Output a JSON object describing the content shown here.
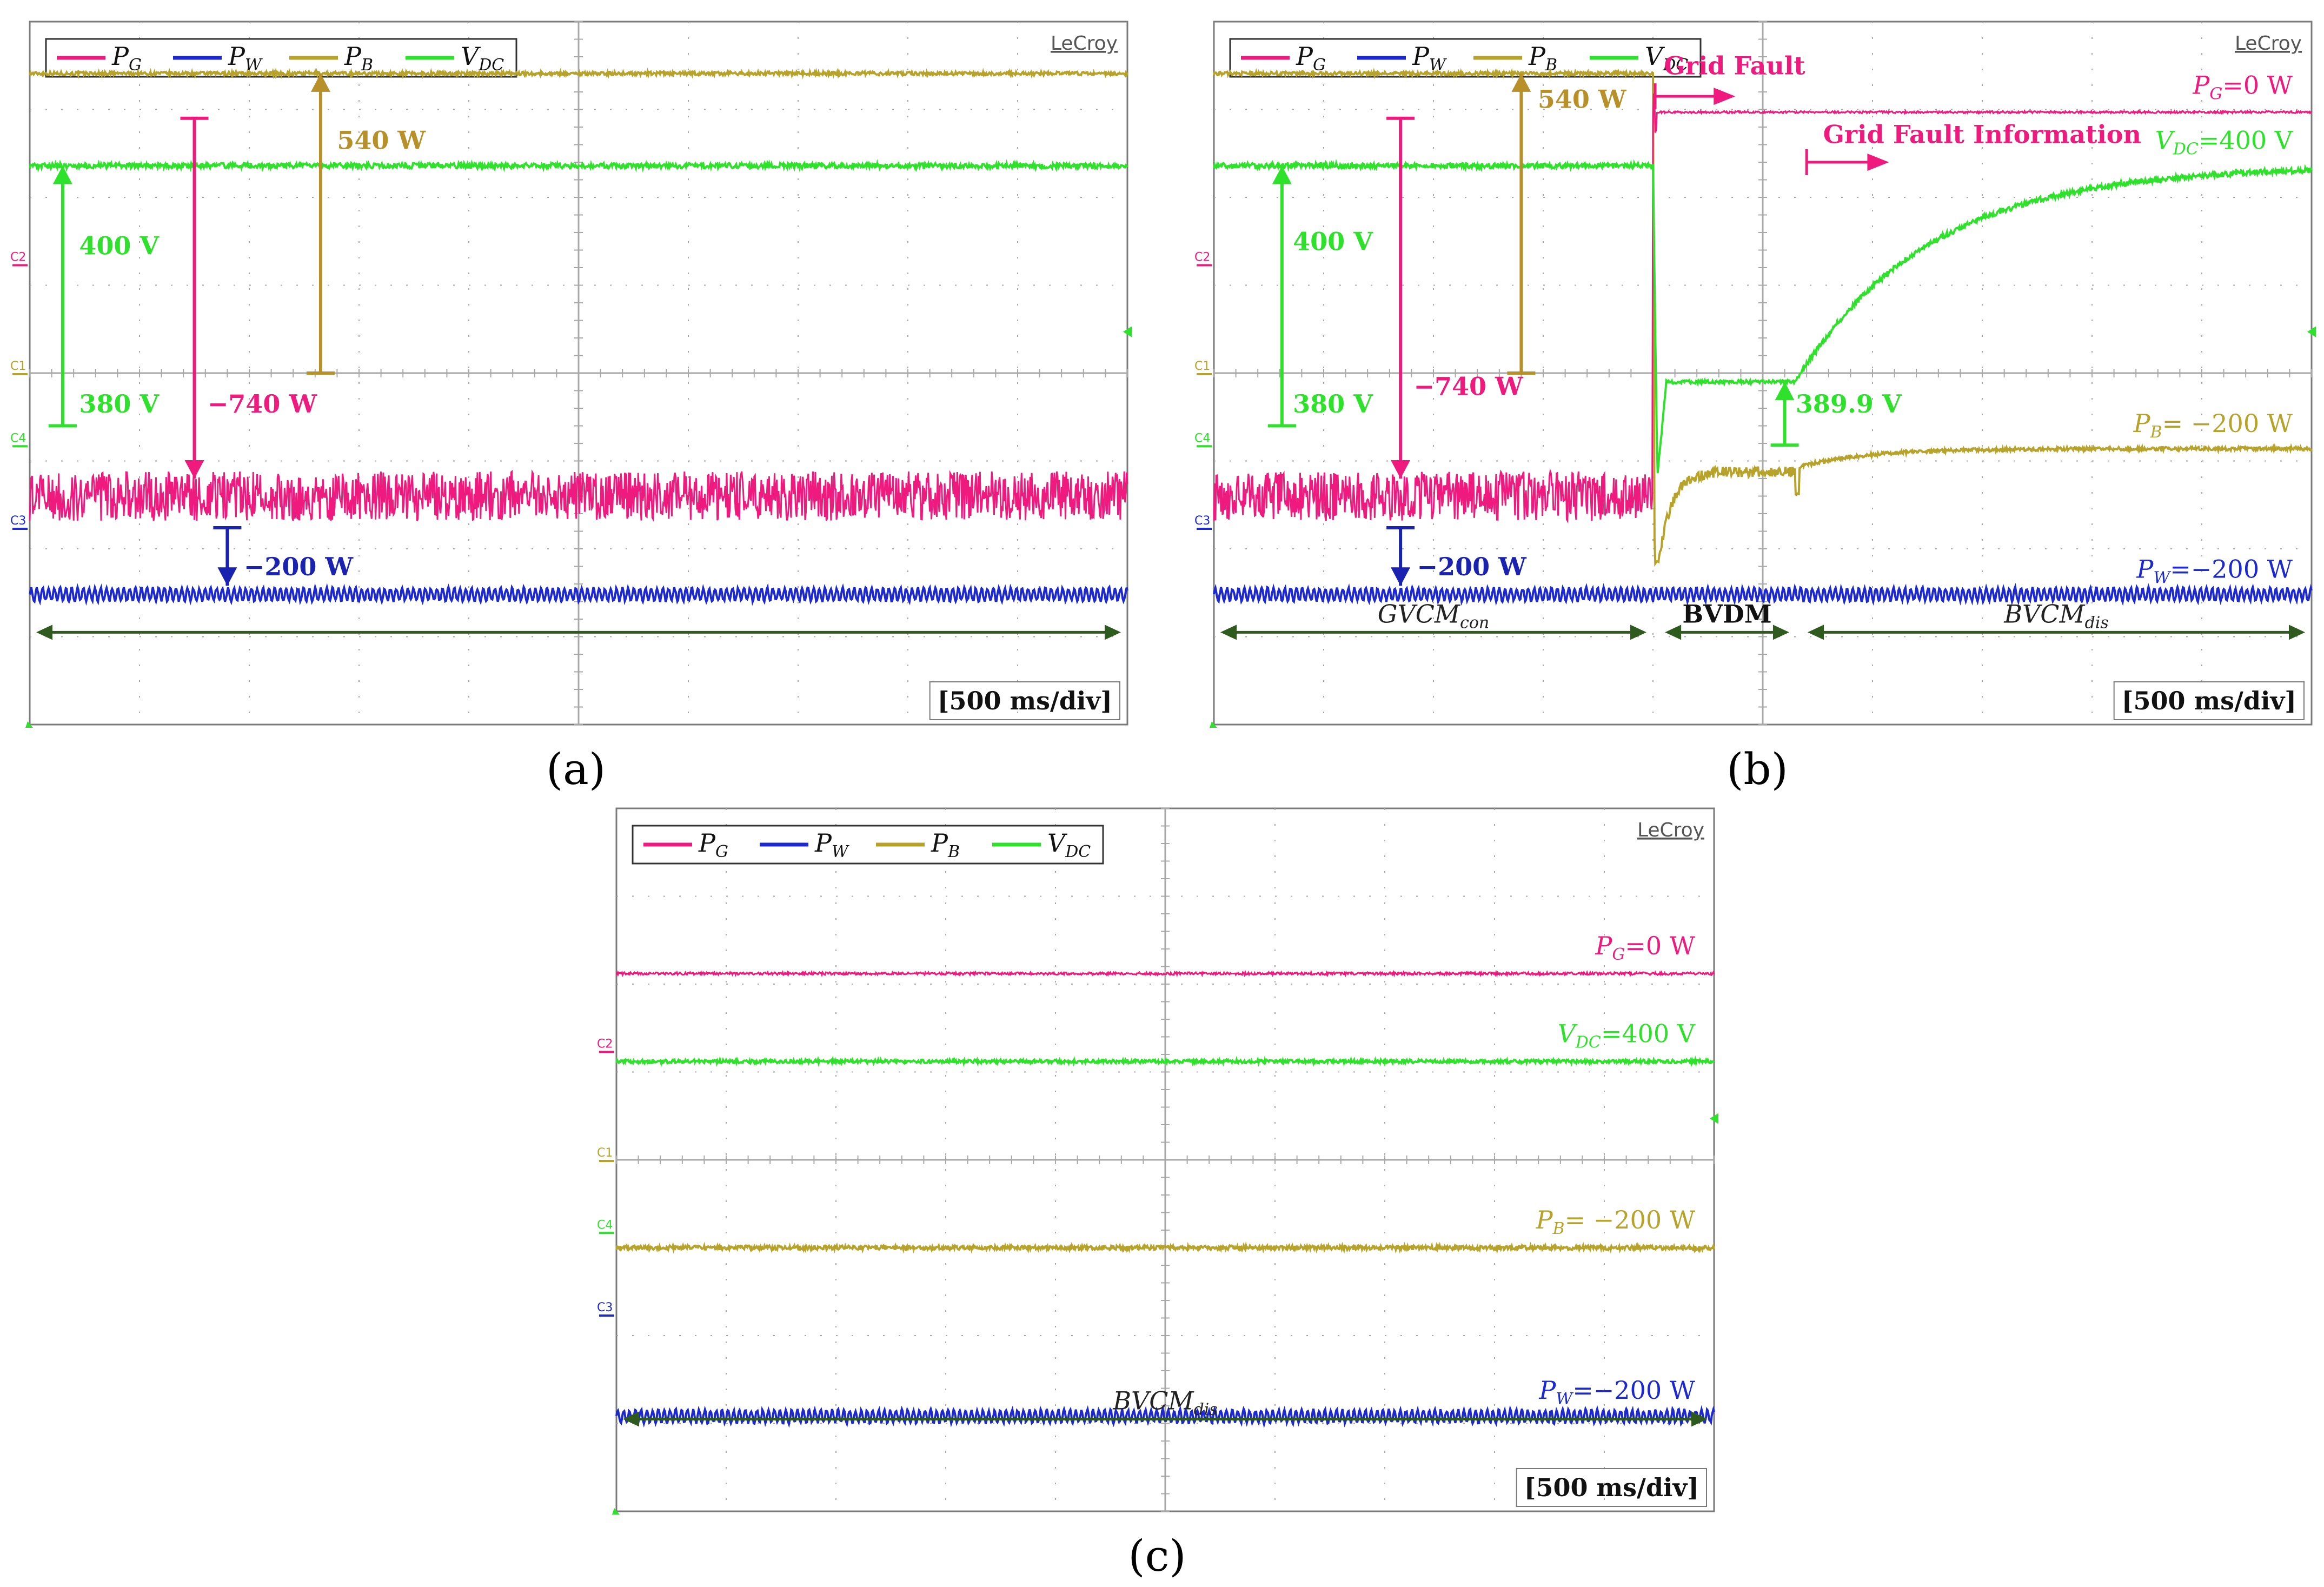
{
  "colors": {
    "P_G": "#ee1a7e",
    "P_W": "#1c28d0",
    "P_B": "#b8a32a",
    "V_DC": "#2ee12a",
    "arrow_PB": "#b8902a",
    "arrow_PW": "#1a22b0",
    "mode_arrow": "#2f5a1e",
    "grid": "#a8a8a8",
    "frame": "#7a7a7a"
  },
  "chart_data": [
    {
      "id": "a",
      "type": "line",
      "caption": "(a)",
      "brand": "LeCroy",
      "timebase": "[500 ms/div]",
      "x_divisions": 10,
      "y_divisions": 8,
      "legend": [
        {
          "key": "P_G",
          "main": "P",
          "sub": "G"
        },
        {
          "key": "P_W",
          "main": "P",
          "sub": "W"
        },
        {
          "key": "P_B",
          "main": "P",
          "sub": "B"
        },
        {
          "key": "V_DC",
          "main": "V",
          "sub": "DC"
        }
      ],
      "channel_markers": [
        {
          "text": "C2",
          "color": "P_G",
          "level": 5.24
        },
        {
          "text": "C1",
          "color": "P_B",
          "level": 4.0
        },
        {
          "text": "C4",
          "color": "V_DC",
          "level": 3.18
        },
        {
          "text": "C3",
          "color": "P_W",
          "level": 2.24
        }
      ],
      "trigger_level": 4.47,
      "series": [
        {
          "name": "P_B",
          "segments": [
            {
              "t0": 0,
              "t1": 10,
              "y0": 7.41,
              "y1": 7.41
            }
          ],
          "noise": 0.02
        },
        {
          "name": "V_DC",
          "segments": [
            {
              "t0": 0,
              "t1": 10,
              "y0": 6.36,
              "y1": 6.36
            }
          ],
          "noise": 0.03
        },
        {
          "name": "P_G",
          "segments": [
            {
              "t0": 0,
              "t1": 10,
              "y0": 2.6,
              "y1": 2.6
            }
          ],
          "noise": 0.28
        },
        {
          "name": "P_W",
          "segments": [
            {
              "t0": 0,
              "t1": 10,
              "y0": 1.48,
              "y1": 1.48
            }
          ],
          "noise": 0.07,
          "ripple": true
        }
      ],
      "annotations": [
        {
          "text": "540 W",
          "color": "arrow_PB",
          "kind": "arrow-up",
          "t": 2.65,
          "y_from": 4.0,
          "y_to": 7.41,
          "label_t": 2.8,
          "label_y": 6.55
        },
        {
          "text": "400 V",
          "color": "V_DC",
          "kind": "arrow-up",
          "t": 0.3,
          "y_from": 3.4,
          "y_to": 6.36,
          "label_t": 0.45,
          "label_y": 5.35
        },
        {
          "text": "380 V",
          "color": "V_DC",
          "kind": "bar-label",
          "t": 0.3,
          "label_t": 0.45,
          "label_y": 3.55
        },
        {
          "text": "−740 W",
          "color": "P_G",
          "kind": "arrow-down",
          "t": 1.5,
          "y_from": 6.9,
          "y_to": 2.8,
          "label_t": 1.62,
          "label_y": 3.55
        },
        {
          "text": "−200 W",
          "color": "arrow_PW",
          "kind": "arrow-down",
          "t": 1.8,
          "y_from": 2.24,
          "y_to": 1.58,
          "label_t": 1.95,
          "label_y": 1.7
        }
      ],
      "modes": [
        {
          "text": "",
          "t0": 0,
          "t1": 10
        }
      ]
    },
    {
      "id": "b",
      "type": "line",
      "caption": "(b)",
      "brand": "LeCroy",
      "timebase": "[500 ms/div]",
      "x_divisions": 10,
      "y_divisions": 8,
      "legend": [
        {
          "key": "P_G",
          "main": "P",
          "sub": "G"
        },
        {
          "key": "P_W",
          "main": "P",
          "sub": "W"
        },
        {
          "key": "P_B",
          "main": "P",
          "sub": "B"
        },
        {
          "key": "V_DC",
          "main": "V",
          "sub": "DC"
        }
      ],
      "channel_markers": [
        {
          "text": "C2",
          "color": "P_G",
          "level": 5.24
        },
        {
          "text": "C1",
          "color": "P_B",
          "level": 4.0
        },
        {
          "text": "C4",
          "color": "V_DC",
          "level": 3.18
        },
        {
          "text": "C3",
          "color": "P_W",
          "level": 2.24
        }
      ],
      "trigger_level": 4.47,
      "fault_time": 4.0,
      "series": [
        {
          "name": "P_B",
          "kind": "fault-pb",
          "y_before": 7.41,
          "y_dip": 1.85,
          "y_bvdm": 2.88,
          "y_after": 3.14,
          "t_bvcm": 5.3,
          "noise": 0.02
        },
        {
          "name": "P_G",
          "kind": "fault-pg",
          "y_before": 2.6,
          "y_spike": 6.95,
          "y_after": 6.97,
          "noise": 0.28
        },
        {
          "name": "V_DC",
          "kind": "fault-vdc",
          "y_before": 6.36,
          "y_dip": 2.8,
          "y_bvdm": 3.9,
          "y_after": 6.36,
          "t_bvcm": 5.3,
          "noise": 0.03
        },
        {
          "name": "P_W",
          "segments": [
            {
              "t0": 0,
              "t1": 10,
              "y0": 1.48,
              "y1": 1.48
            }
          ],
          "noise": 0.07,
          "ripple": true
        }
      ],
      "annotations": [
        {
          "text": "540 W",
          "color": "arrow_PB",
          "kind": "arrow-up",
          "t": 2.8,
          "y_from": 4.0,
          "y_to": 7.41,
          "label_t": 2.95,
          "label_y": 7.02
        },
        {
          "text": "400 V",
          "color": "V_DC",
          "kind": "arrow-up",
          "t": 0.62,
          "y_from": 3.4,
          "y_to": 6.36,
          "label_t": 0.72,
          "label_y": 5.4
        },
        {
          "text": "380 V",
          "color": "V_DC",
          "kind": "bar-label",
          "t": 0.62,
          "label_t": 0.72,
          "label_y": 3.55
        },
        {
          "text": "−740 W",
          "color": "P_G",
          "kind": "arrow-down",
          "t": 1.7,
          "y_from": 6.9,
          "y_to": 2.8,
          "label_t": 1.82,
          "label_y": 3.75
        },
        {
          "text": "−200 W",
          "color": "arrow_PW",
          "kind": "arrow-down",
          "t": 1.7,
          "y_from": 2.24,
          "y_to": 1.58,
          "label_t": 1.85,
          "label_y": 1.7
        },
        {
          "text": "389.9 V",
          "color": "V_DC",
          "kind": "arrow-up",
          "t": 5.2,
          "y_from": 3.18,
          "y_to": 3.9,
          "label_t": 5.3,
          "label_y": 3.55
        },
        {
          "text": "Grid Fault",
          "color": "P_G",
          "kind": "event-arrow",
          "t": 4.02,
          "t_end": 4.75,
          "y": 7.15,
          "label_t": 4.1,
          "label_y": 7.4
        },
        {
          "text": "Grid Fault Information",
          "color": "P_G",
          "kind": "event-arrow",
          "t": 5.4,
          "t_end": 6.15,
          "y": 6.4,
          "label_t": 5.55,
          "label_y": 6.62
        }
      ],
      "level_labels": [
        {
          "main": "P",
          "sub": "G",
          "value": "=0 W",
          "color": "P_G",
          "y": 7.18
        },
        {
          "main": "V",
          "sub": "DC",
          "value": "=400 V",
          "color": "V_DC",
          "y": 6.55
        },
        {
          "main": "P",
          "sub": "B",
          "value": "= −200 W",
          "color": "P_B",
          "y": 3.33
        },
        {
          "main": "P",
          "sub": "W",
          "value": "=−200 W",
          "color": "P_W",
          "y": 1.67
        }
      ],
      "modes": [
        {
          "text": "",
          "main": "GVCM",
          "sub": "con",
          "t0": 0,
          "t1": 4.0
        },
        {
          "text": "BVDM",
          "bold": true,
          "t0": 4.05,
          "t1": 5.3
        },
        {
          "text": "",
          "main": "BVCM",
          "sub": "dis",
          "t0": 5.35,
          "t1": 10
        }
      ]
    },
    {
      "id": "c",
      "type": "line",
      "caption": "(c)",
      "brand": "LeCroy",
      "timebase": "[500 ms/div]",
      "x_divisions": 10,
      "y_divisions": 8,
      "legend": [
        {
          "key": "P_G",
          "main": "P",
          "sub": "G"
        },
        {
          "key": "P_W",
          "main": "P",
          "sub": "W"
        },
        {
          "key": "P_B",
          "main": "P",
          "sub": "B"
        },
        {
          "key": "V_DC",
          "main": "V",
          "sub": "DC"
        }
      ],
      "channel_markers": [
        {
          "text": "C2",
          "color": "P_G",
          "level": 5.24
        },
        {
          "text": "C1",
          "color": "P_B",
          "level": 4.0
        },
        {
          "text": "C4",
          "color": "V_DC",
          "level": 3.18
        },
        {
          "text": "C3",
          "color": "P_W",
          "level": 2.24
        }
      ],
      "trigger_level": 4.47,
      "series": [
        {
          "name": "P_G",
          "segments": [
            {
              "t0": 0,
              "t1": 10,
              "y0": 6.12,
              "y1": 6.12
            }
          ],
          "noise": 0.015
        },
        {
          "name": "V_DC",
          "segments": [
            {
              "t0": 0,
              "t1": 10,
              "y0": 5.12,
              "y1": 5.12
            }
          ],
          "noise": 0.02
        },
        {
          "name": "P_B",
          "segments": [
            {
              "t0": 0,
              "t1": 10,
              "y0": 3.0,
              "y1": 3.0
            }
          ],
          "noise": 0.025
        },
        {
          "name": "P_W",
          "segments": [
            {
              "t0": 0,
              "t1": 10,
              "y0": 1.08,
              "y1": 1.08
            }
          ],
          "noise": 0.07,
          "ripple": true
        }
      ],
      "annotations": [],
      "level_labels": [
        {
          "main": "P",
          "sub": "G",
          "value": "=0 W",
          "color": "P_G",
          "y": 6.34
        },
        {
          "main": "V",
          "sub": "DC",
          "value": "=400 V",
          "color": "V_DC",
          "y": 5.34
        },
        {
          "main": "P",
          "sub": "B",
          "value": "= −200 W",
          "color": "P_B",
          "y": 3.22
        },
        {
          "main": "P",
          "sub": "W",
          "value": "=−200 W",
          "color": "P_W",
          "y": 1.28
        }
      ],
      "modes": [
        {
          "text": "",
          "main": "BVCM",
          "sub": "dis",
          "t0": 0,
          "t1": 10
        }
      ]
    }
  ]
}
